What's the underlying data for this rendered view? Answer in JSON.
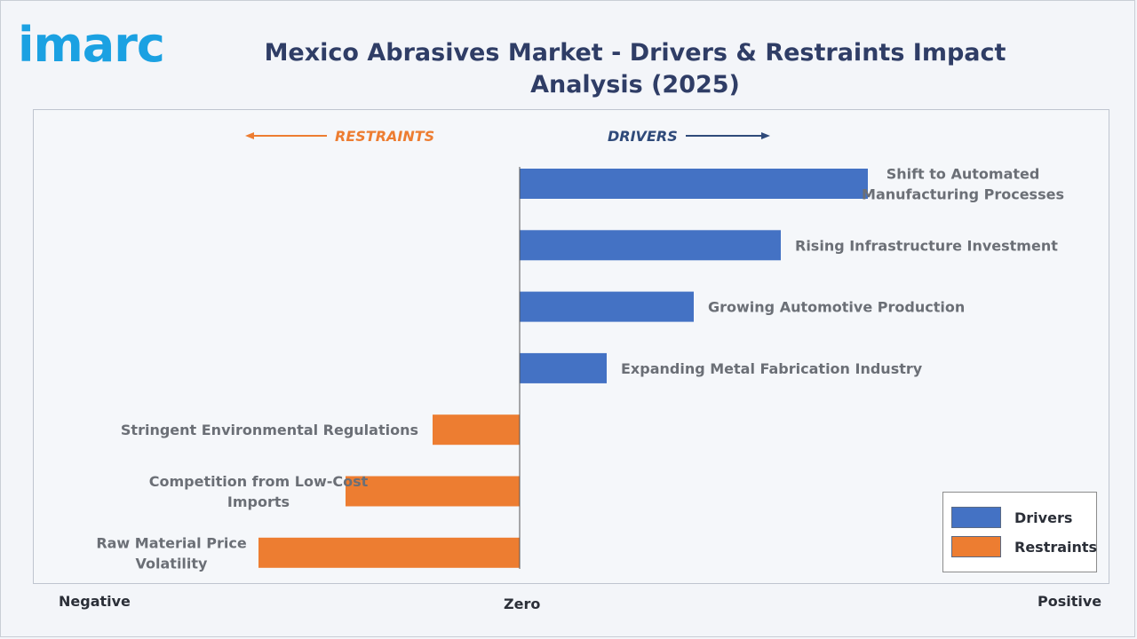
{
  "brand": {
    "logo_text": "imarc"
  },
  "header": {
    "title": "Mexico Abrasives Market - Drivers & Restraints Impact Analysis (2025)"
  },
  "direction_labels": {
    "restraints": "RESTRAINTS",
    "drivers": "DRIVERS"
  },
  "axis_words": {
    "negative": "Negative",
    "zero": "Zero",
    "positive": "Positive"
  },
  "legend": [
    {
      "label": "Drivers",
      "color": "#4472c4"
    },
    {
      "label": "Restraints",
      "color": "#ed7d31"
    }
  ],
  "colors": {
    "drivers": "#4472c4",
    "restraints": "#ed7d31",
    "restraints_text": "#ed7d31",
    "drivers_text": "#2f4a7a"
  },
  "chart_data": {
    "type": "bar",
    "orientation": "horizontal",
    "title": "Mexico Abrasives Market - Drivers & Restraints Impact Analysis (2025)",
    "xlabel": "",
    "ylabel": "",
    "xlim": [
      -3,
      4
    ],
    "categories": [
      "Shift to Automated Manufacturing Processes",
      "Rising Infrastructure Investment",
      "Growing Automotive Production",
      "Expanding Metal Fabrication Industry",
      "Stringent Environmental Regulations",
      "Competition from Low-Cost Imports",
      "Raw Material Price Volatility"
    ],
    "label_lines": [
      [
        "Shift to Automated",
        "Manufacturing Processes"
      ],
      [
        "Rising Infrastructure Investment"
      ],
      [
        "Growing Automotive Production"
      ],
      [
        "Expanding Metal Fabrication Industry"
      ],
      [
        "Stringent Environmental Regulations"
      ],
      [
        "Competition from Low-Cost",
        "Imports"
      ],
      [
        "Raw Material Price",
        "Volatility"
      ]
    ],
    "series": [
      {
        "name": "Drivers",
        "values": [
          4,
          3,
          2,
          1,
          0,
          0,
          0
        ]
      },
      {
        "name": "Restraints",
        "values": [
          0,
          0,
          0,
          0,
          -1,
          -2,
          -3
        ]
      }
    ],
    "grid": false,
    "legend_position": "bottom-right"
  }
}
